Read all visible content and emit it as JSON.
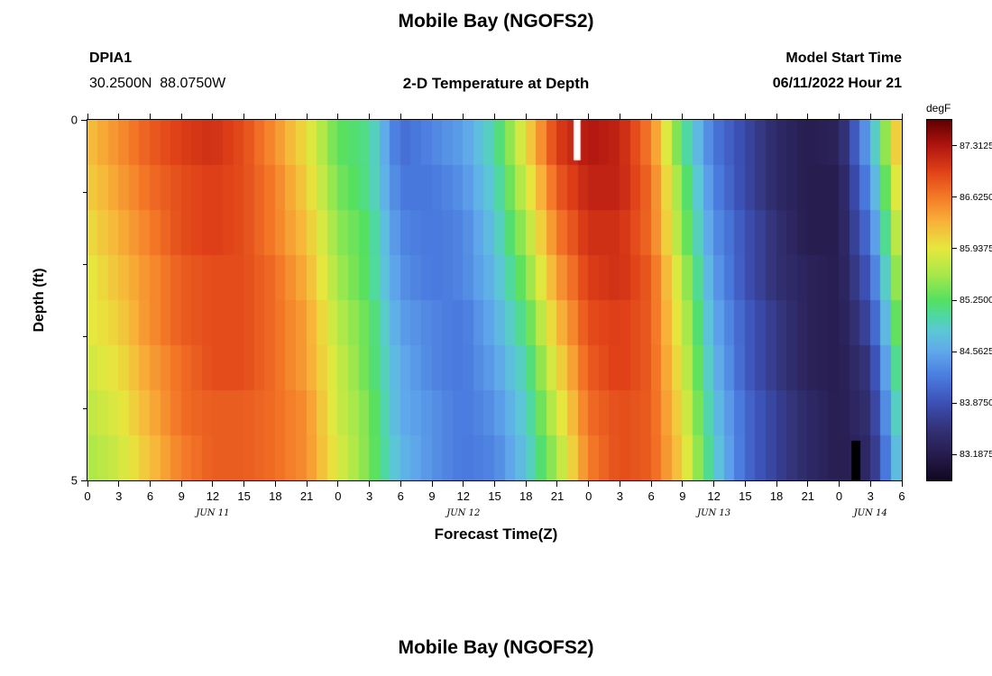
{
  "page": {
    "title": "Mobile Bay (NGOFS2)",
    "station_id": "DPIA1",
    "coordinates": "30.2500N  88.0750W",
    "subtitle": "2-D Temperature at Depth",
    "model_start_label": "Model Start Time",
    "model_start_value": "06/11/2022 Hour 21",
    "xlabel": "Forecast Time(Z)",
    "ylabel": "Depth (ft)",
    "colorbar_label": "degF",
    "next_chart_title": "Mobile Bay (NGOFS2)"
  },
  "chart_data": {
    "type": "heatmap",
    "title": "Mobile Bay (NGOFS2)",
    "subtitle": "2-D Temperature at Depth",
    "station": "DPIA1",
    "station_location": "30.2500N 88.0750W",
    "model_start": "06/11/2022 Hour 21",
    "xlabel": "Forecast Time(Z)",
    "ylabel": "Depth (ft)",
    "units": "degF",
    "hour_range": [
      0,
      78
    ],
    "depth_range": [
      0,
      5
    ],
    "x_step": 3,
    "x_hours": [
      0,
      3,
      6,
      9,
      12,
      15,
      18,
      21,
      24,
      27,
      30,
      33,
      36,
      39,
      42,
      45,
      48,
      51,
      54,
      57,
      60,
      63,
      66,
      69,
      72,
      75,
      78
    ],
    "x_ticks": [
      {
        "hour": 0,
        "label": "0"
      },
      {
        "hour": 3,
        "label": "3"
      },
      {
        "hour": 6,
        "label": "6"
      },
      {
        "hour": 9,
        "label": "9"
      },
      {
        "hour": 12,
        "label": "12"
      },
      {
        "hour": 15,
        "label": "15"
      },
      {
        "hour": 18,
        "label": "18"
      },
      {
        "hour": 21,
        "label": "21"
      },
      {
        "hour": 24,
        "label": "0"
      },
      {
        "hour": 27,
        "label": "3"
      },
      {
        "hour": 30,
        "label": "6"
      },
      {
        "hour": 33,
        "label": "9"
      },
      {
        "hour": 36,
        "label": "12"
      },
      {
        "hour": 39,
        "label": "15"
      },
      {
        "hour": 42,
        "label": "18"
      },
      {
        "hour": 45,
        "label": "21"
      },
      {
        "hour": 48,
        "label": "0"
      },
      {
        "hour": 51,
        "label": "3"
      },
      {
        "hour": 54,
        "label": "6"
      },
      {
        "hour": 57,
        "label": "9"
      },
      {
        "hour": 60,
        "label": "12"
      },
      {
        "hour": 63,
        "label": "15"
      },
      {
        "hour": 66,
        "label": "18"
      },
      {
        "hour": 69,
        "label": "21"
      },
      {
        "hour": 72,
        "label": "0"
      },
      {
        "hour": 75,
        "label": "3"
      },
      {
        "hour": 78,
        "label": "6"
      }
    ],
    "date_labels": [
      {
        "label": "JUN 11",
        "hour": 12
      },
      {
        "label": "JUN 12",
        "hour": 36
      },
      {
        "label": "JUN 13",
        "hour": 60
      },
      {
        "label": "JUN 14",
        "hour": 75
      }
    ],
    "y_ticks": [
      {
        "depth": 0,
        "label": "0"
      },
      {
        "depth": 1,
        "label": ""
      },
      {
        "depth": 2,
        "label": ""
      },
      {
        "depth": 3,
        "label": ""
      },
      {
        "depth": 4,
        "label": ""
      },
      {
        "depth": 5,
        "label": "5"
      }
    ],
    "scale": {
      "min": 82.84375,
      "max": 87.65625
    },
    "colorbar": {
      "label": "degF",
      "ticks": [
        {
          "value": 87.3125,
          "label": "87.3125"
        },
        {
          "value": 86.625,
          "label": "86.6250"
        },
        {
          "value": 85.9375,
          "label": "85.9375"
        },
        {
          "value": 85.25,
          "label": "85.2500"
        },
        {
          "value": 84.5625,
          "label": "84.5625"
        },
        {
          "value": 83.875,
          "label": "83.8750"
        },
        {
          "value": 83.1875,
          "label": "83.1875"
        }
      ]
    },
    "colormap_stops": [
      [
        82.84375,
        "#10081f"
      ],
      [
        83.1875,
        "#271c4e"
      ],
      [
        83.53125,
        "#333277"
      ],
      [
        83.875,
        "#3c50b5"
      ],
      [
        84.21875,
        "#4a7ade"
      ],
      [
        84.5625,
        "#60a8ec"
      ],
      [
        84.84,
        "#5cc8d6"
      ],
      [
        85.05,
        "#4fd9a0"
      ],
      [
        85.25,
        "#55e060"
      ],
      [
        85.59375,
        "#a8e84a"
      ],
      [
        85.9375,
        "#e6e83e"
      ],
      [
        86.28125,
        "#f8b53a"
      ],
      [
        86.625,
        "#f47a28"
      ],
      [
        86.96875,
        "#e04118"
      ],
      [
        87.3125,
        "#b01510"
      ],
      [
        87.65625,
        "#600000"
      ]
    ],
    "row_depths": [
      0.0,
      0.625,
      1.25,
      1.875,
      2.5,
      3.125,
      3.75,
      4.375
    ],
    "values": [
      [
        86.2,
        86.5,
        86.8,
        87.0,
        87.1,
        86.9,
        86.5,
        86.0,
        85.3,
        85.1,
        84.1,
        84.3,
        84.5,
        85.0,
        86.0,
        87.0,
        87.3,
        87.2,
        86.6,
        85.2,
        84.2,
        83.8,
        83.4,
        83.2,
        83.3,
        84.6,
        86.4
      ],
      [
        86.1,
        86.4,
        86.7,
        86.9,
        87.0,
        86.9,
        86.6,
        86.1,
        85.4,
        85.1,
        84.2,
        84.2,
        84.4,
        84.9,
        85.8,
        86.8,
        87.2,
        87.2,
        86.7,
        85.4,
        84.3,
        83.8,
        83.4,
        83.2,
        83.2,
        84.4,
        86.2
      ],
      [
        86.0,
        86.3,
        86.6,
        86.9,
        87.0,
        86.9,
        86.6,
        86.2,
        85.5,
        85.2,
        84.3,
        84.2,
        84.3,
        84.8,
        85.6,
        86.6,
        87.1,
        87.1,
        86.7,
        85.5,
        84.4,
        83.9,
        83.5,
        83.2,
        83.2,
        84.2,
        86.0
      ],
      [
        85.9,
        86.2,
        86.5,
        86.8,
        86.9,
        86.9,
        86.7,
        86.3,
        85.6,
        85.2,
        84.4,
        84.2,
        84.3,
        84.7,
        85.4,
        86.4,
        87.0,
        87.1,
        86.8,
        85.7,
        84.5,
        83.9,
        83.5,
        83.3,
        83.2,
        84.0,
        85.8
      ],
      [
        85.9,
        86.1,
        86.5,
        86.8,
        86.9,
        86.9,
        86.7,
        86.4,
        85.7,
        85.3,
        84.5,
        84.3,
        84.2,
        84.6,
        85.2,
        86.2,
        86.9,
        87.0,
        86.8,
        85.8,
        84.6,
        84.0,
        83.6,
        83.3,
        83.2,
        83.8,
        85.6
      ],
      [
        85.8,
        86.0,
        86.4,
        86.7,
        86.9,
        86.9,
        86.7,
        86.4,
        85.8,
        85.3,
        84.6,
        84.3,
        84.2,
        84.5,
        85.0,
        86.0,
        86.8,
        87.0,
        86.8,
        85.9,
        84.7,
        84.0,
        83.6,
        83.3,
        83.2,
        83.6,
        85.4
      ],
      [
        85.7,
        85.9,
        86.3,
        86.7,
        86.8,
        86.8,
        86.7,
        86.5,
        85.8,
        85.4,
        84.6,
        84.4,
        84.2,
        84.4,
        84.9,
        85.8,
        86.7,
        86.9,
        86.8,
        86.0,
        84.8,
        84.1,
        83.7,
        83.4,
        83.2,
        83.5,
        85.2
      ],
      [
        85.6,
        85.8,
        86.2,
        86.6,
        86.8,
        86.8,
        86.7,
        86.5,
        85.9,
        85.4,
        84.7,
        84.4,
        84.2,
        84.3,
        84.8,
        85.6,
        86.6,
        86.9,
        86.8,
        86.1,
        84.9,
        84.1,
        83.7,
        83.4,
        83.2,
        83.4,
        85.0
      ]
    ],
    "anomalies": [
      {
        "kind": "missing-data-bar",
        "color": "#ffffff",
        "hour": 46.9,
        "hour_width": 0.65,
        "depth_from": 0.0,
        "depth_to": 0.56
      },
      {
        "kind": "dark-spike-bar",
        "color": "#000000",
        "hour": 73.6,
        "hour_width": 0.85,
        "depth_from": 4.45,
        "depth_to": 5.0
      }
    ]
  }
}
